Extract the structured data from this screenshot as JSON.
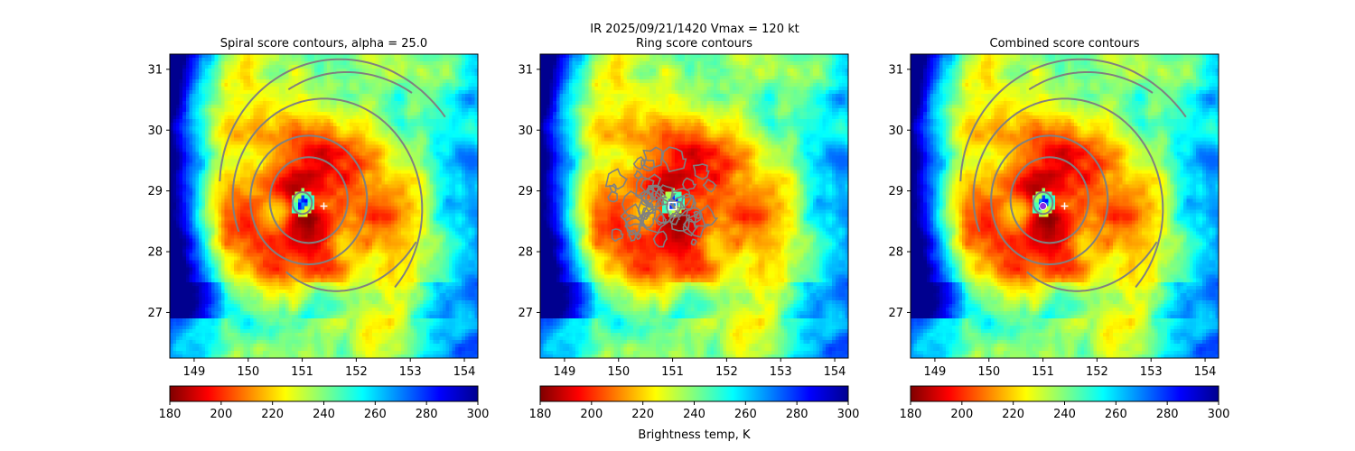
{
  "suptitle": "IR  2025/09/21/1420    Vmax = 120 kt",
  "colorbar_label": "Brightness temp, K",
  "colormap": {
    "name": "jet_r",
    "stops": [
      "#7f0000",
      "#ff0000",
      "#ff8000",
      "#ffff00",
      "#80ff80",
      "#00ffff",
      "#0080ff",
      "#0000ff",
      "#00008f"
    ]
  },
  "contour_color": "#808080",
  "marker_color": "#ffffff",
  "chart_data": [
    {
      "type": "heatmap",
      "title": "Spiral score contours, alpha = 25.0",
      "xlim": [
        148.55,
        154.25
      ],
      "ylim": [
        26.25,
        31.25
      ],
      "xticks": [
        "149",
        "150",
        "151",
        "152",
        "153",
        "154"
      ],
      "yticks": [
        "27",
        "28",
        "29",
        "30",
        "31"
      ],
      "colorbar": {
        "range": [
          180,
          300
        ],
        "ticks": [
          "180",
          "200",
          "220",
          "240",
          "260",
          "280",
          "300"
        ]
      },
      "eye_center": [
        151.0,
        28.8
      ],
      "marker": {
        "shape": "plus",
        "lon": 151.4,
        "lat": 28.75
      },
      "overlay": "spiral contours"
    },
    {
      "type": "heatmap",
      "title": "Ring score contours",
      "xlim": [
        148.55,
        154.25
      ],
      "ylim": [
        26.25,
        31.25
      ],
      "xticks": [
        "149",
        "150",
        "151",
        "152",
        "153",
        "154"
      ],
      "yticks": [
        "27",
        "28",
        "29",
        "30",
        "31"
      ],
      "colorbar": {
        "range": [
          180,
          300
        ],
        "ticks": [
          "180",
          "200",
          "220",
          "240",
          "260",
          "280",
          "300"
        ]
      },
      "eye_center": [
        151.0,
        28.8
      ],
      "marker": {
        "shape": "square",
        "lon": 151.0,
        "lat": 28.75
      },
      "overlay": "ring contours"
    },
    {
      "type": "heatmap",
      "title": "Combined score contours",
      "xlim": [
        148.55,
        154.25
      ],
      "ylim": [
        26.25,
        31.25
      ],
      "xticks": [
        "149",
        "150",
        "151",
        "152",
        "153",
        "154"
      ],
      "yticks": [
        "27",
        "28",
        "29",
        "30",
        "31"
      ],
      "colorbar": {
        "range": [
          180,
          300
        ],
        "ticks": [
          "180",
          "200",
          "220",
          "240",
          "260",
          "280",
          "300"
        ]
      },
      "eye_center": [
        151.0,
        28.8
      ],
      "marker": {
        "shape": "plus",
        "lon": 151.4,
        "lat": 28.75
      },
      "center_dot": {
        "lon": 151.0,
        "lat": 28.75,
        "color": "#8a2be2"
      },
      "overlay": "spiral contours"
    }
  ]
}
